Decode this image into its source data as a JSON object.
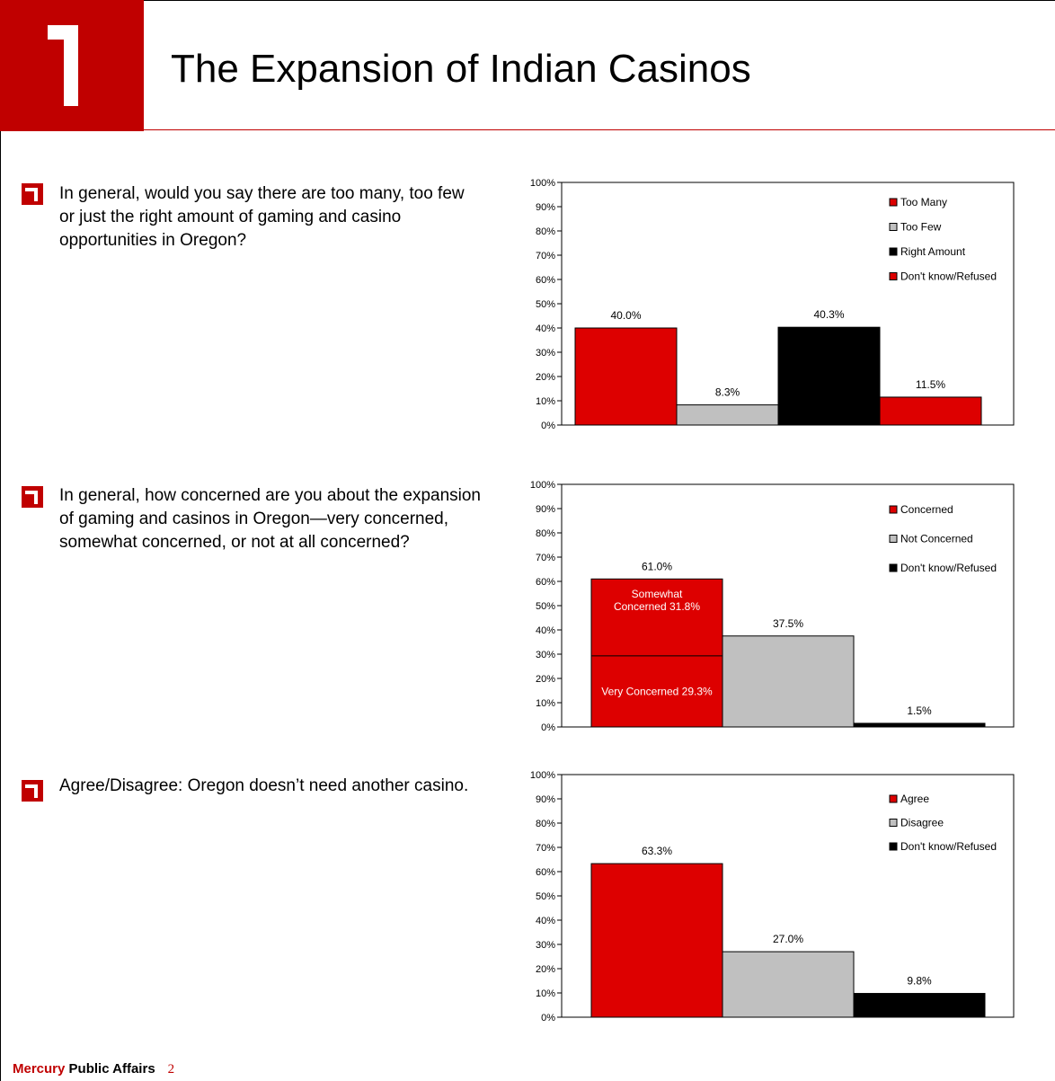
{
  "header": {
    "title": "The Expansion of Indian Casinos"
  },
  "questions": [
    "In general, would you say there are too many, too few or just the right amount of gaming and casino opportunities in Oregon?",
    "In general, how concerned are you about the expansion of gaming and casinos in Oregon—very concerned, somewhat concerned, or not at all concerned?",
    "Agree/Disagree: Oregon doesn’t need another casino."
  ],
  "footer": {
    "brand": "Mercury",
    "rest": " Public Affairs",
    "page": "2"
  },
  "chart_data": [
    {
      "type": "bar",
      "categories": [
        "Too Many",
        "Too Few",
        "Right Amount",
        "Don't know/Refused"
      ],
      "values": [
        40.0,
        8.3,
        40.3,
        11.5
      ],
      "data_labels": [
        "40.0%",
        "8.3%",
        "40.3%",
        "11.5%"
      ],
      "colors": [
        "#dd0000",
        "#c0c0c0",
        "#000000",
        "#dd0000"
      ],
      "legend": [
        "Too Many",
        "Too Few",
        "Right Amount",
        "Don't know/Refused"
      ],
      "legend_position": "top-right",
      "yticks": [
        "0%",
        "10%",
        "20%",
        "30%",
        "40%",
        "50%",
        "60%",
        "70%",
        "80%",
        "90%",
        "100%"
      ],
      "ylim": [
        0,
        100
      ]
    },
    {
      "type": "bar",
      "categories": [
        "Concerned",
        "Not Concerned",
        "Don't know/Refused"
      ],
      "values": [
        61.0,
        37.5,
        1.5
      ],
      "data_labels": [
        "61.0%",
        "37.5%",
        "1.5%"
      ],
      "segments": [
        {
          "category": "Concerned",
          "name": "Very Concerned",
          "value": 29.3,
          "label": "Very Concerned 29.3%"
        },
        {
          "category": "Concerned",
          "name": "Somewhat Concerned",
          "value": 31.8,
          "label": "Somewhat Concerned 31.8%"
        }
      ],
      "colors": [
        "#dd0000",
        "#c0c0c0",
        "#000000"
      ],
      "legend": [
        "Concerned",
        "Not Concerned",
        "Don't know/Refused"
      ],
      "legend_position": "top-right",
      "yticks": [
        "0%",
        "10%",
        "20%",
        "30%",
        "40%",
        "50%",
        "60%",
        "70%",
        "80%",
        "90%",
        "100%"
      ],
      "ylim": [
        0,
        100
      ]
    },
    {
      "type": "bar",
      "categories": [
        "Agree",
        "Disagree",
        "Don't know/Refused"
      ],
      "values": [
        63.3,
        27.0,
        9.8
      ],
      "data_labels": [
        "63.3%",
        "27.0%",
        "9.8%"
      ],
      "colors": [
        "#dd0000",
        "#c0c0c0",
        "#000000"
      ],
      "legend": [
        "Agree",
        "Disagree",
        "Don't know/Refused"
      ],
      "legend_position": "top-right",
      "yticks": [
        "0%",
        "10%",
        "20%",
        "30%",
        "40%",
        "50%",
        "60%",
        "70%",
        "80%",
        "90%",
        "100%"
      ],
      "ylim": [
        0,
        100
      ]
    }
  ]
}
